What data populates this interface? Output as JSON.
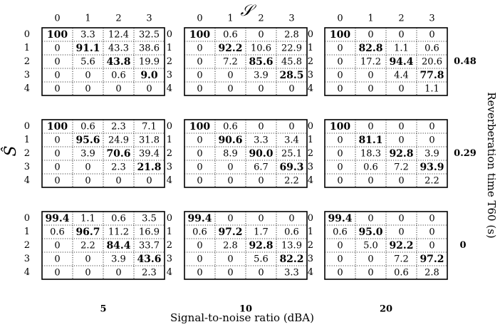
{
  "chart_data": {
    "type": "heatmap",
    "col_axis_label": "𝒮",
    "row_axis_label": "Ŝ",
    "col_categories": [
      "0",
      "1",
      "2",
      "3"
    ],
    "row_categories": [
      "0",
      "1",
      "2",
      "3",
      "4"
    ],
    "xlabel": "Signal-to-noise ratio (dBA)",
    "ylabel": "Reverberation time T60 (s)",
    "snr_levels": [
      "5",
      "10",
      "20"
    ],
    "rt60_levels": [
      "0.48",
      "0.29",
      "0"
    ],
    "panels": [
      {
        "snr": "5",
        "rt60": "0.48",
        "values": [
          [
            "100",
            "3.3",
            "12.4",
            "32.5"
          ],
          [
            "0",
            "91.1",
            "43.3",
            "38.6"
          ],
          [
            "0",
            "5.6",
            "43.8",
            "19.9"
          ],
          [
            "0",
            "0",
            "0.6",
            "9.0"
          ],
          [
            "0",
            "0",
            "0",
            "0"
          ]
        ]
      },
      {
        "snr": "10",
        "rt60": "0.48",
        "values": [
          [
            "100",
            "0.6",
            "0",
            "2.8"
          ],
          [
            "0",
            "92.2",
            "10.6",
            "22.9"
          ],
          [
            "0",
            "7.2",
            "85.6",
            "45.8"
          ],
          [
            "0",
            "0",
            "3.9",
            "28.5"
          ],
          [
            "0",
            "0",
            "0",
            "0"
          ]
        ]
      },
      {
        "snr": "20",
        "rt60": "0.48",
        "values": [
          [
            "100",
            "0",
            "0",
            "0"
          ],
          [
            "0",
            "82.8",
            "1.1",
            "0.6"
          ],
          [
            "0",
            "17.2",
            "94.4",
            "20.6"
          ],
          [
            "0",
            "0",
            "4.4",
            "77.8"
          ],
          [
            "0",
            "0",
            "0",
            "1.1"
          ]
        ]
      },
      {
        "snr": "5",
        "rt60": "0.29",
        "values": [
          [
            "100",
            "0.6",
            "2.3",
            "7.1"
          ],
          [
            "0",
            "95.6",
            "24.9",
            "31.8"
          ],
          [
            "0",
            "3.9",
            "70.6",
            "39.4"
          ],
          [
            "0",
            "0",
            "2.3",
            "21.8"
          ],
          [
            "0",
            "0",
            "0",
            "0"
          ]
        ]
      },
      {
        "snr": "10",
        "rt60": "0.29",
        "values": [
          [
            "100",
            "0.6",
            "0",
            "0"
          ],
          [
            "0",
            "90.6",
            "3.3",
            "3.4"
          ],
          [
            "0",
            "8.9",
            "90.0",
            "25.1"
          ],
          [
            "0",
            "0",
            "6.7",
            "69.3"
          ],
          [
            "0",
            "0",
            "0",
            "2.2"
          ]
        ]
      },
      {
        "snr": "20",
        "rt60": "0.29",
        "values": [
          [
            "100",
            "0",
            "0",
            "0"
          ],
          [
            "0",
            "81.1",
            "0",
            "0"
          ],
          [
            "0",
            "18.3",
            "92.8",
            "3.9"
          ],
          [
            "0",
            "0.6",
            "7.2",
            "93.9"
          ],
          [
            "0",
            "0",
            "0",
            "2.2"
          ]
        ]
      },
      {
        "snr": "5",
        "rt60": "0",
        "values": [
          [
            "99.4",
            "1.1",
            "0.6",
            "3.5"
          ],
          [
            "0.6",
            "96.7",
            "11.2",
            "16.9"
          ],
          [
            "0",
            "2.2",
            "84.4",
            "33.7"
          ],
          [
            "0",
            "0",
            "3.9",
            "43.6"
          ],
          [
            "0",
            "0",
            "0",
            "2.3"
          ]
        ]
      },
      {
        "snr": "10",
        "rt60": "0",
        "values": [
          [
            "99.4",
            "0",
            "0",
            "0"
          ],
          [
            "0.6",
            "97.2",
            "1.7",
            "0.6"
          ],
          [
            "0",
            "2.8",
            "92.8",
            "13.9"
          ],
          [
            "0",
            "0",
            "5.6",
            "82.2"
          ],
          [
            "0",
            "0",
            "0",
            "3.3"
          ]
        ]
      },
      {
        "snr": "20",
        "rt60": "0",
        "values": [
          [
            "99.4",
            "0",
            "0",
            "0"
          ],
          [
            "0.6",
            "95.0",
            "0",
            "0"
          ],
          [
            "0",
            "5.0",
            "92.2",
            "0"
          ],
          [
            "0",
            "0",
            "7.2",
            "97.2"
          ],
          [
            "0",
            "0",
            "0.6",
            "2.8"
          ]
        ]
      }
    ]
  }
}
